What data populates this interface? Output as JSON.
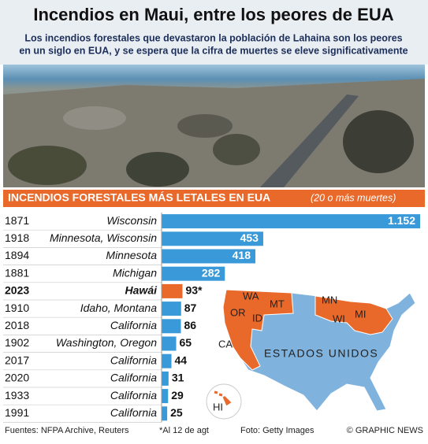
{
  "header": {
    "title": "Incendios en Maui, entre los peores de EUA",
    "subtitle_lines": [
      "Los incendios forestales que devastaron la población de Lahaina son los peores",
      "en un siglo en EUA, y se espera que la cifra de muertes se eleve significativamente"
    ]
  },
  "chart_data": {
    "type": "hbar",
    "title": "INCENDIOS FORESTALES MÁS LETALES EN EUA",
    "subtitle": "(20 o más muertes)",
    "categories": [
      "1871",
      "1918",
      "1894",
      "1881",
      "2023",
      "1910",
      "2018",
      "1902",
      "2017",
      "2020",
      "1933",
      "1991"
    ],
    "places": [
      "Wisconsin",
      "Minnesota, Wisconsin",
      "Minnesota",
      "Michigan",
      "Hawái",
      "Idaho, Montana",
      "California",
      "Washington, Oregon",
      "California",
      "California",
      "California",
      "California"
    ],
    "values": [
      1152,
      453,
      418,
      282,
      93,
      87,
      86,
      65,
      44,
      31,
      29,
      25
    ],
    "value_labels": [
      "1.152",
      "453",
      "418",
      "282",
      "93*",
      "87",
      "86",
      "65",
      "44",
      "31",
      "29",
      "25"
    ],
    "colors": [
      "#3a9ad9",
      "#3a9ad9",
      "#3a9ad9",
      "#3a9ad9",
      "#e8692a",
      "#3a9ad9",
      "#3a9ad9",
      "#3a9ad9",
      "#3a9ad9",
      "#3a9ad9",
      "#3a9ad9",
      "#3a9ad9"
    ]
  },
  "map": {
    "country": "ESTADOS UNIDOS",
    "states": [
      "WA",
      "OR",
      "ID",
      "MT",
      "CA",
      "MN",
      "WI",
      "MI",
      "HI"
    ]
  },
  "footer": [
    "Fuentes: NFPA Archive, Reuters",
    "*Al 12 de agt",
    "Foto: Getty Images",
    "© GRAPHIC NEWS"
  ]
}
